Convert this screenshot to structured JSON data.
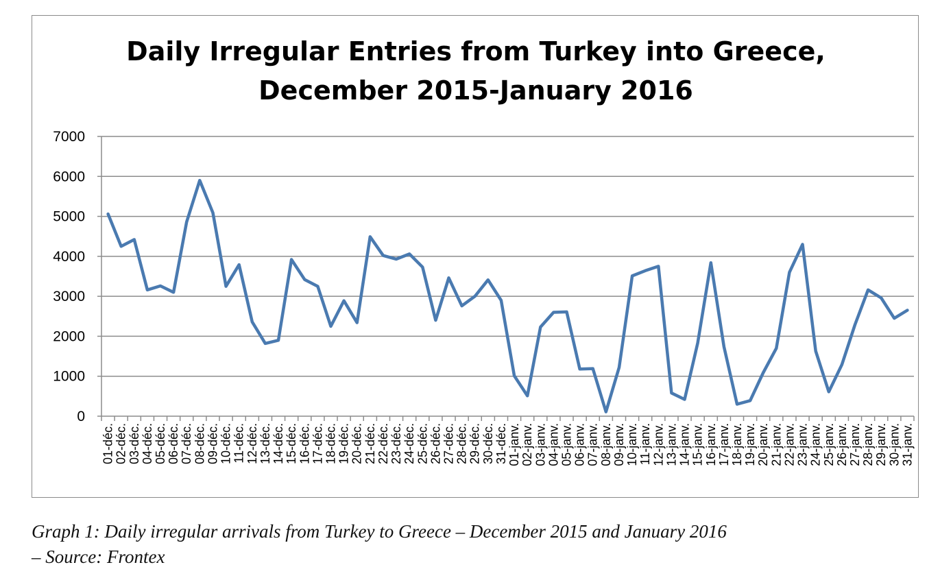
{
  "chart_data": {
    "type": "line",
    "title_lines": [
      "Daily Irregular Entries from Turkey into Greece,",
      "December 2015-January 2016"
    ],
    "xlabel": "",
    "ylabel": "",
    "ylim": [
      0,
      7000
    ],
    "yticks": [
      "0",
      "1000",
      "2000",
      "3000",
      "4000",
      "5000",
      "6000",
      "7000"
    ],
    "grid": true,
    "legend": "none",
    "line_color": "#4a7ab0",
    "categories": [
      "01-déc.",
      "02-déc.",
      "03-déc.",
      "04-déc.",
      "05-déc.",
      "06-déc.",
      "07-déc.",
      "08-déc.",
      "09-déc.",
      "10-déc.",
      "11-déc.",
      "12-déc.",
      "13-déc.",
      "14-déc.",
      "15-déc.",
      "16-déc.",
      "17-déc.",
      "18-déc.",
      "19-déc.",
      "20-déc.",
      "21-déc.",
      "22-déc.",
      "23-déc.",
      "24-déc.",
      "25-déc.",
      "26-déc.",
      "27-déc.",
      "28-déc.",
      "29-déc.",
      "30-déc.",
      "31-déc.",
      "01-janv.",
      "02-janv.",
      "03-janv.",
      "04-janv.",
      "05-janv.",
      "06-janv.",
      "07-janv.",
      "08-janv.",
      "09-janv.",
      "10-janv.",
      "11-janv.",
      "12-janv.",
      "13-janv.",
      "14-janv.",
      "15-janv.",
      "16-janv.",
      "17-janv.",
      "18-janv.",
      "19-janv.",
      "20-janv.",
      "21-janv.",
      "22-janv.",
      "23-janv.",
      "24-janv.",
      "25-janv.",
      "26-janv.",
      "27-janv.",
      "28-janv.",
      "29-janv.",
      "30-janv.",
      "31-janv."
    ],
    "values": [
      5060,
      4250,
      4420,
      3160,
      3260,
      3100,
      4860,
      5900,
      5090,
      3250,
      3790,
      2360,
      1820,
      1900,
      3920,
      3420,
      3250,
      2250,
      2890,
      2340,
      4490,
      4020,
      3930,
      4060,
      3730,
      2400,
      3460,
      2760,
      3000,
      3410,
      2900,
      1010,
      510,
      2230,
      2600,
      2610,
      1180,
      1190,
      110,
      1220,
      3510,
      3640,
      3750,
      580,
      420,
      1830,
      3840,
      1740,
      300,
      390,
      1090,
      1700,
      3600,
      4300,
      1630,
      610,
      1290,
      2290,
      3160,
      2960,
      2450,
      2650
    ]
  },
  "caption": {
    "line1": "Graph 1: Daily irregular arrivals from Turkey to Greece – December 2015 and January 2016",
    "line2": "– Source: Frontex"
  }
}
